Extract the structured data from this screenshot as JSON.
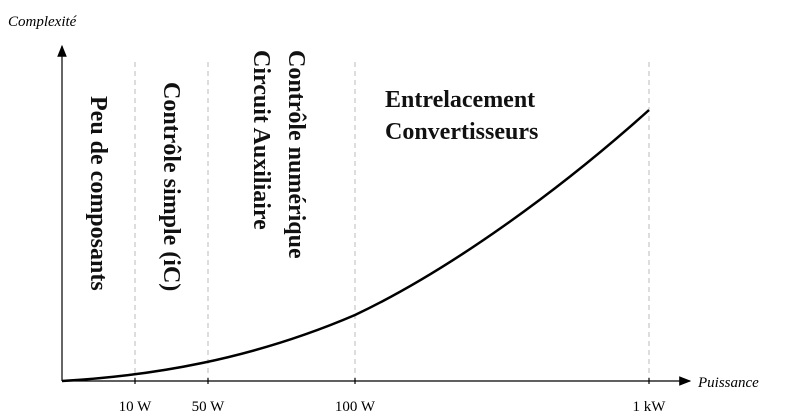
{
  "axes": {
    "y_label": "Complexité",
    "x_label": "Puissance"
  },
  "ticks": [
    "10 W",
    "50 W",
    "100 W",
    "1 kW"
  ],
  "regions": [
    {
      "lines": [
        "Peu de composants"
      ]
    },
    {
      "lines": [
        "Contrôle simple (iC)"
      ]
    },
    {
      "lines": [
        "Contrôle numérique",
        "Circuit Auxiliaire"
      ]
    },
    {
      "lines": [
        "Entrelacement",
        "Convertisseurs"
      ]
    }
  ]
}
